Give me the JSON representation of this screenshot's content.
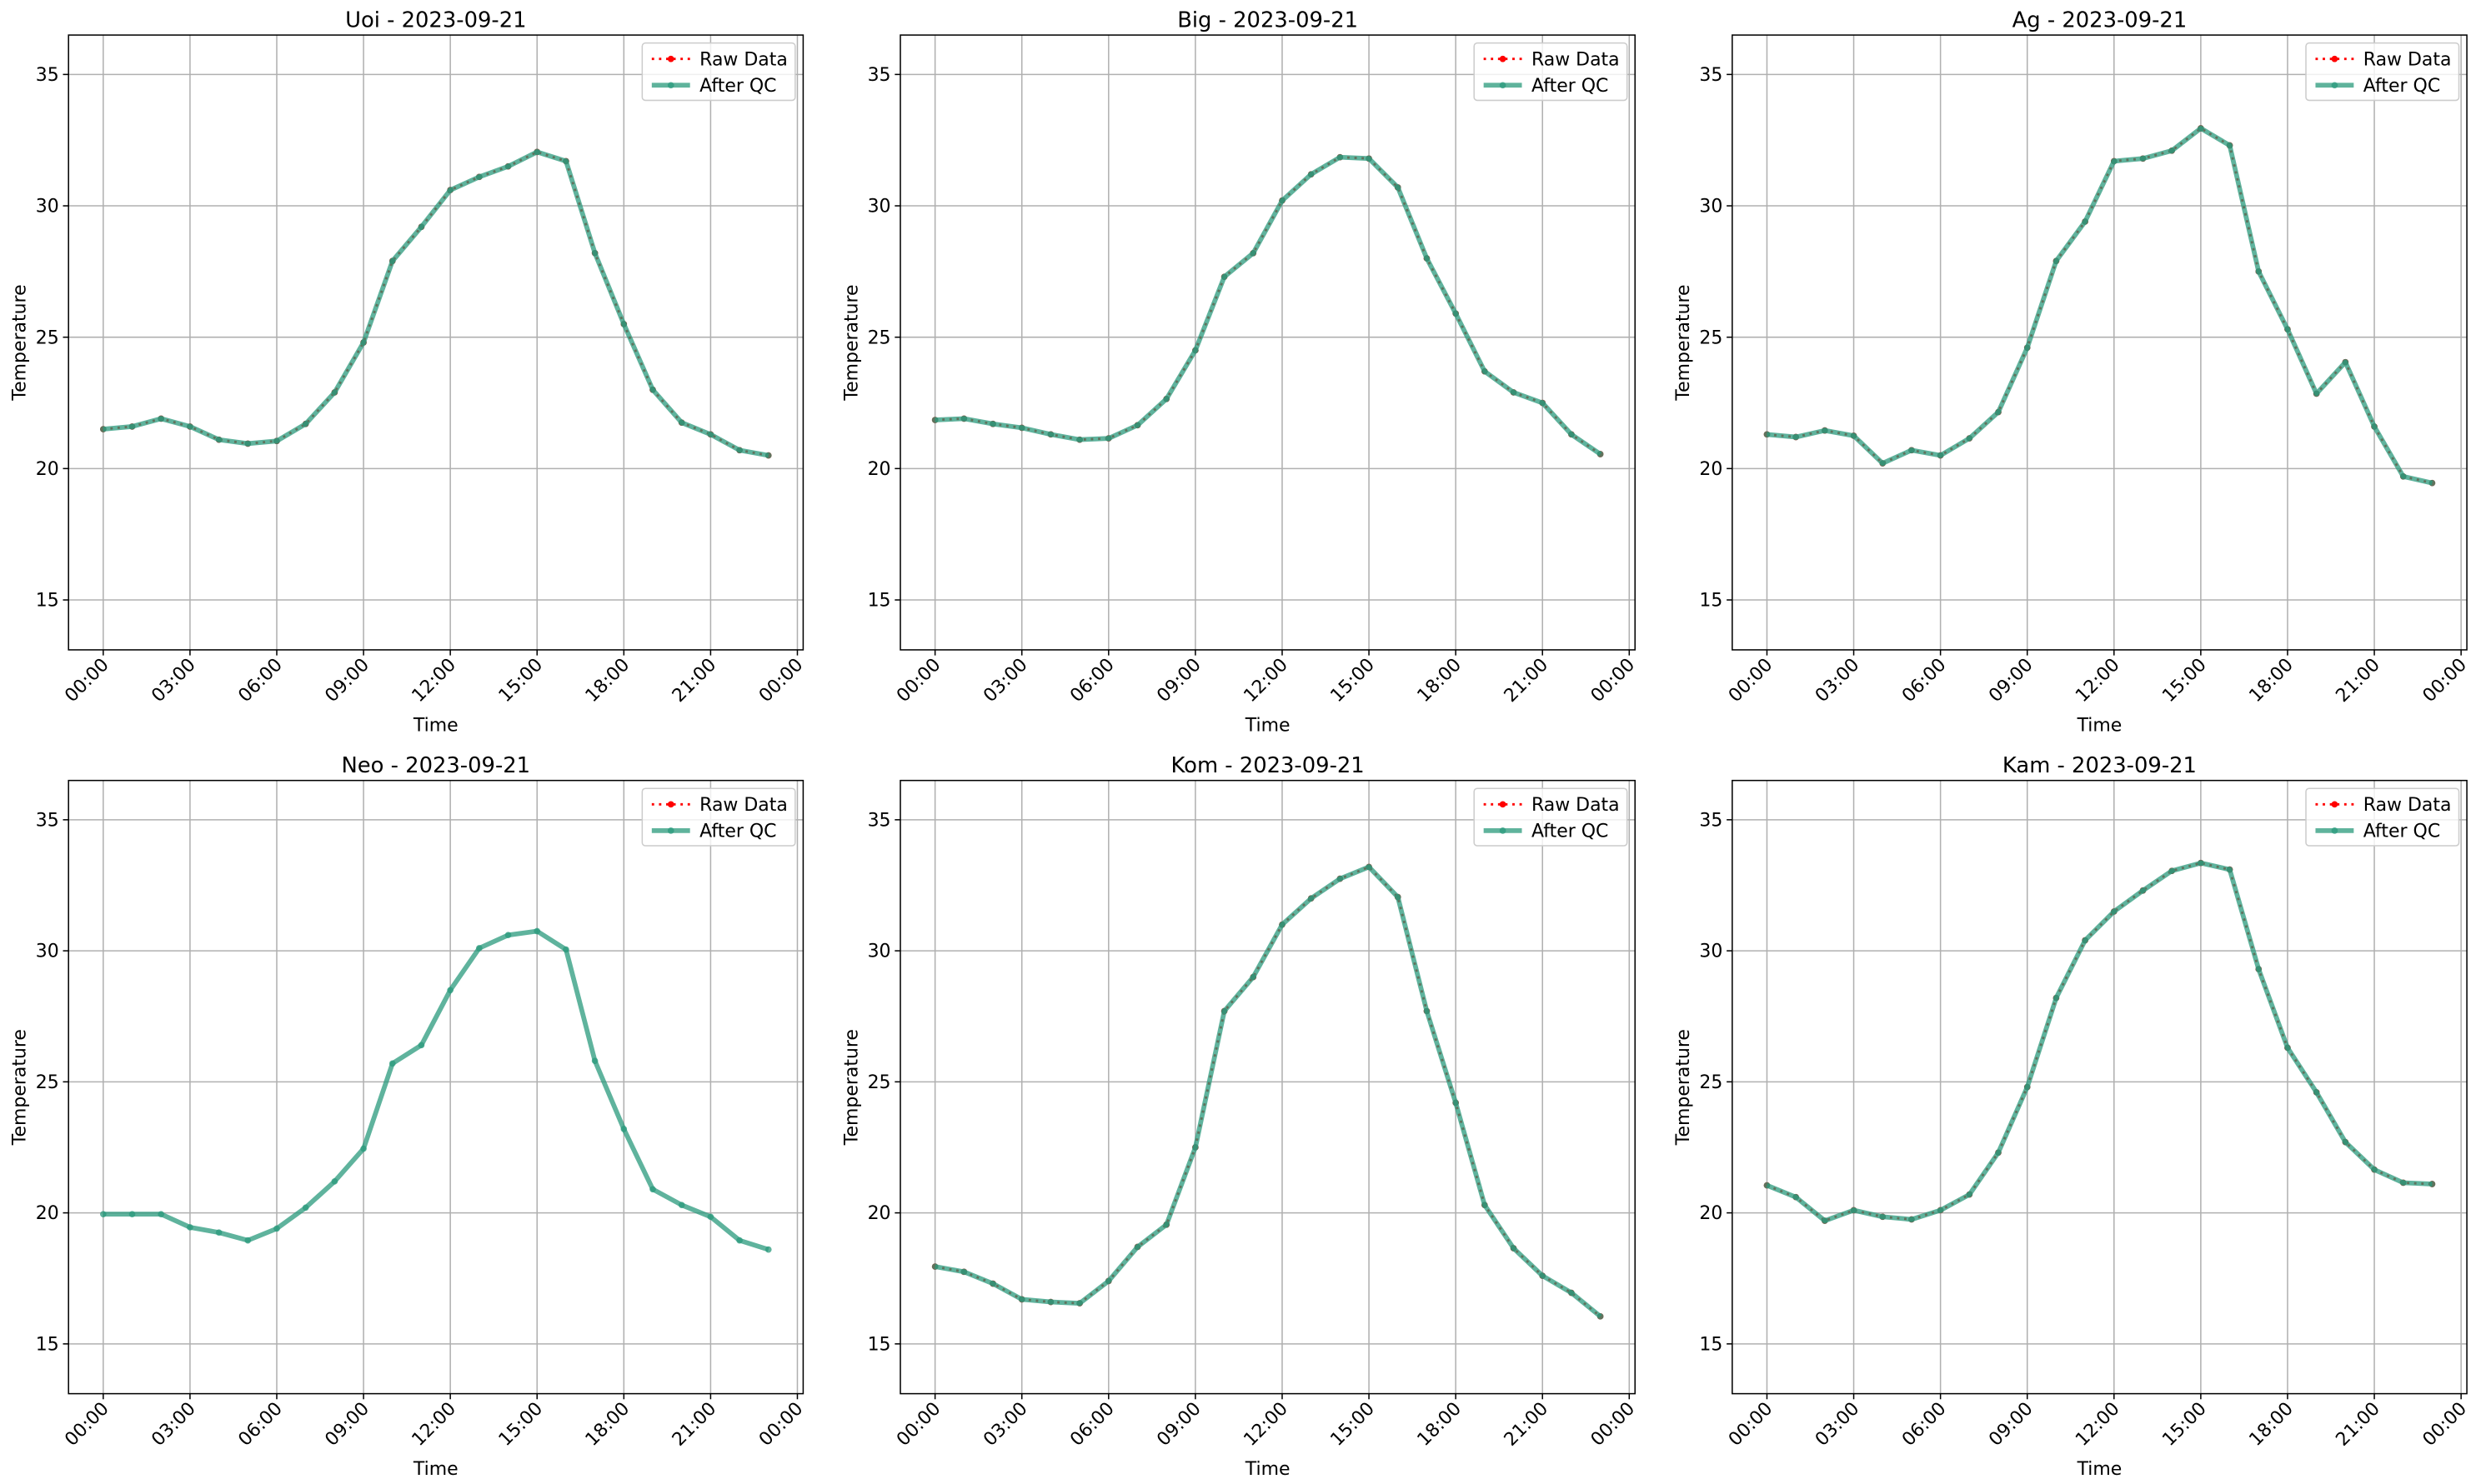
{
  "chart_data": [
    {
      "type": "line",
      "title": "Uoi - 2023-09-21",
      "xlabel": "Time",
      "ylabel": "Temperature",
      "x": [
        0,
        1,
        2,
        3,
        4,
        5,
        6,
        7,
        8,
        9,
        10,
        11,
        12,
        13,
        14,
        15,
        16,
        17,
        18,
        19,
        20,
        21,
        22,
        23
      ],
      "xlim": [
        -1.2,
        24.2
      ],
      "xticks": [
        {
          "value": 0,
          "label": "00:00"
        },
        {
          "value": 3,
          "label": "03:00"
        },
        {
          "value": 6,
          "label": "06:00"
        },
        {
          "value": 9,
          "label": "09:00"
        },
        {
          "value": 12,
          "label": "12:00"
        },
        {
          "value": 15,
          "label": "15:00"
        },
        {
          "value": 18,
          "label": "18:00"
        },
        {
          "value": 21,
          "label": "21:00"
        },
        {
          "value": 24,
          "label": "00:00"
        }
      ],
      "ylim": [
        13.1,
        36.5
      ],
      "yticks": [
        15,
        20,
        25,
        30,
        35
      ],
      "grid": true,
      "legend": "upper right",
      "series": [
        {
          "name": "Raw Data",
          "color": "#ff0000",
          "values": [
            21.5,
            21.6,
            21.9,
            21.6,
            21.1,
            20.95,
            21.05,
            21.7,
            22.9,
            24.8,
            27.9,
            29.2,
            30.6,
            31.1,
            31.5,
            32.05,
            31.7,
            28.2,
            25.5,
            23.0,
            21.75,
            21.3,
            20.7,
            20.5
          ]
        },
        {
          "name": "After QC",
          "color": "#2a9a7c",
          "values": [
            21.5,
            21.6,
            21.9,
            21.6,
            21.1,
            20.95,
            21.05,
            21.7,
            22.9,
            24.8,
            27.9,
            29.2,
            30.6,
            31.1,
            31.5,
            32.05,
            31.7,
            28.2,
            25.5,
            23.0,
            21.75,
            21.3,
            20.7,
            20.5
          ]
        }
      ]
    },
    {
      "type": "line",
      "title": "Big - 2023-09-21",
      "xlabel": "Time",
      "ylabel": "Temperature",
      "x": [
        0,
        1,
        2,
        3,
        4,
        5,
        6,
        7,
        8,
        9,
        10,
        11,
        12,
        13,
        14,
        15,
        16,
        17,
        18,
        19,
        20,
        21,
        22,
        23
      ],
      "xlim": [
        -1.2,
        24.2
      ],
      "xticks": [
        {
          "value": 0,
          "label": "00:00"
        },
        {
          "value": 3,
          "label": "03:00"
        },
        {
          "value": 6,
          "label": "06:00"
        },
        {
          "value": 9,
          "label": "09:00"
        },
        {
          "value": 12,
          "label": "12:00"
        },
        {
          "value": 15,
          "label": "15:00"
        },
        {
          "value": 18,
          "label": "18:00"
        },
        {
          "value": 21,
          "label": "21:00"
        },
        {
          "value": 24,
          "label": "00:00"
        }
      ],
      "ylim": [
        13.1,
        36.5
      ],
      "yticks": [
        15,
        20,
        25,
        30,
        35
      ],
      "grid": true,
      "legend": "upper right",
      "series": [
        {
          "name": "Raw Data",
          "color": "#ff0000",
          "values": [
            21.85,
            21.9,
            21.7,
            21.55,
            21.3,
            21.1,
            21.15,
            21.65,
            22.65,
            24.5,
            27.3,
            28.2,
            30.2,
            31.2,
            31.85,
            31.8,
            30.7,
            28.0,
            25.9,
            23.7,
            22.9,
            22.5,
            21.3,
            20.55
          ]
        },
        {
          "name": "After QC",
          "color": "#2a9a7c",
          "values": [
            21.85,
            21.9,
            21.7,
            21.55,
            21.3,
            21.1,
            21.15,
            21.65,
            22.65,
            24.5,
            27.3,
            28.2,
            30.2,
            31.2,
            31.85,
            31.8,
            30.7,
            28.0,
            25.9,
            23.7,
            22.9,
            22.5,
            21.3,
            20.55
          ]
        }
      ]
    },
    {
      "type": "line",
      "title": "Ag - 2023-09-21",
      "xlabel": "Time",
      "ylabel": "Temperature",
      "x": [
        0,
        1,
        2,
        3,
        4,
        5,
        6,
        7,
        8,
        9,
        10,
        11,
        12,
        13,
        14,
        15,
        16,
        17,
        18,
        19,
        20,
        21,
        22,
        23
      ],
      "xlim": [
        -1.2,
        24.2
      ],
      "xticks": [
        {
          "value": 0,
          "label": "00:00"
        },
        {
          "value": 3,
          "label": "03:00"
        },
        {
          "value": 6,
          "label": "06:00"
        },
        {
          "value": 9,
          "label": "09:00"
        },
        {
          "value": 12,
          "label": "12:00"
        },
        {
          "value": 15,
          "label": "15:00"
        },
        {
          "value": 18,
          "label": "18:00"
        },
        {
          "value": 21,
          "label": "21:00"
        },
        {
          "value": 24,
          "label": "00:00"
        }
      ],
      "ylim": [
        13.1,
        36.5
      ],
      "yticks": [
        15,
        20,
        25,
        30,
        35
      ],
      "grid": true,
      "legend": "upper right",
      "series": [
        {
          "name": "Raw Data",
          "color": "#ff0000",
          "values": [
            21.3,
            21.2,
            21.45,
            21.25,
            20.2,
            20.7,
            20.5,
            21.15,
            22.15,
            24.6,
            27.9,
            29.4,
            31.7,
            31.8,
            32.1,
            32.95,
            32.3,
            27.5,
            25.3,
            22.85,
            24.05,
            21.6,
            19.7,
            19.45
          ]
        },
        {
          "name": "After QC",
          "color": "#2a9a7c",
          "values": [
            21.3,
            21.2,
            21.45,
            21.25,
            20.2,
            20.7,
            20.5,
            21.15,
            22.15,
            24.6,
            27.9,
            29.4,
            31.7,
            31.8,
            32.1,
            32.95,
            32.3,
            27.5,
            25.3,
            22.85,
            24.05,
            21.6,
            19.7,
            19.45
          ]
        }
      ]
    },
    {
      "type": "line",
      "title": "Neo - 2023-09-21",
      "xlabel": "Time",
      "ylabel": "Temperature",
      "x": [
        0,
        1,
        2,
        3,
        4,
        5,
        6,
        7,
        8,
        9,
        10,
        11,
        12,
        13,
        14,
        15,
        16,
        17,
        18,
        19,
        20,
        21,
        22,
        23
      ],
      "xlim": [
        -1.2,
        24.2
      ],
      "xticks": [
        {
          "value": 0,
          "label": "00:00"
        },
        {
          "value": 3,
          "label": "03:00"
        },
        {
          "value": 6,
          "label": "06:00"
        },
        {
          "value": 9,
          "label": "09:00"
        },
        {
          "value": 12,
          "label": "12:00"
        },
        {
          "value": 15,
          "label": "15:00"
        },
        {
          "value": 18,
          "label": "18:00"
        },
        {
          "value": 21,
          "label": "21:00"
        },
        {
          "value": 24,
          "label": "00:00"
        }
      ],
      "ylim": [
        13.1,
        36.5
      ],
      "yticks": [
        15,
        20,
        25,
        30,
        35
      ],
      "grid": true,
      "legend": "upper right",
      "series": [
        {
          "name": "Raw Data",
          "color": "#ff0000",
          "values": [
            null,
            null,
            null,
            null,
            null,
            null,
            null,
            null,
            null,
            null,
            null,
            null,
            null,
            null,
            null,
            null,
            null,
            null,
            null,
            null,
            null,
            null,
            null,
            null
          ]
        },
        {
          "name": "After QC",
          "color": "#2a9a7c",
          "values": [
            19.95,
            19.95,
            19.95,
            19.45,
            19.25,
            18.95,
            19.4,
            20.2,
            21.2,
            22.45,
            25.7,
            26.4,
            28.5,
            30.1,
            30.6,
            30.75,
            30.05,
            25.8,
            23.2,
            20.9,
            20.3,
            19.85,
            18.95,
            18.6
          ]
        }
      ]
    },
    {
      "type": "line",
      "title": "Kom - 2023-09-21",
      "xlabel": "Time",
      "ylabel": "Temperature",
      "x": [
        0,
        1,
        2,
        3,
        4,
        5,
        6,
        7,
        8,
        9,
        10,
        11,
        12,
        13,
        14,
        15,
        16,
        17,
        18,
        19,
        20,
        21,
        22,
        23
      ],
      "xlim": [
        -1.2,
        24.2
      ],
      "xticks": [
        {
          "value": 0,
          "label": "00:00"
        },
        {
          "value": 3,
          "label": "03:00"
        },
        {
          "value": 6,
          "label": "06:00"
        },
        {
          "value": 9,
          "label": "09:00"
        },
        {
          "value": 12,
          "label": "12:00"
        },
        {
          "value": 15,
          "label": "15:00"
        },
        {
          "value": 18,
          "label": "18:00"
        },
        {
          "value": 21,
          "label": "21:00"
        },
        {
          "value": 24,
          "label": "00:00"
        }
      ],
      "ylim": [
        13.1,
        36.5
      ],
      "yticks": [
        15,
        20,
        25,
        30,
        35
      ],
      "grid": true,
      "legend": "upper right",
      "series": [
        {
          "name": "Raw Data",
          "color": "#ff0000",
          "values": [
            17.95,
            17.75,
            17.3,
            16.7,
            16.6,
            16.55,
            17.4,
            18.7,
            19.55,
            22.5,
            27.7,
            29.0,
            31.0,
            32.0,
            32.75,
            33.2,
            32.05,
            27.7,
            24.2,
            20.3,
            18.65,
            17.6,
            16.95,
            16.05
          ]
        },
        {
          "name": "After QC",
          "color": "#2a9a7c",
          "values": [
            17.95,
            17.75,
            17.3,
            16.7,
            16.6,
            16.55,
            17.4,
            18.7,
            19.55,
            22.5,
            27.7,
            29.0,
            31.0,
            32.0,
            32.75,
            33.2,
            32.05,
            27.7,
            24.2,
            20.3,
            18.65,
            17.6,
            16.95,
            16.05
          ]
        }
      ]
    },
    {
      "type": "line",
      "title": "Kam - 2023-09-21",
      "xlabel": "Time",
      "ylabel": "Temperature",
      "x": [
        0,
        1,
        2,
        3,
        4,
        5,
        6,
        7,
        8,
        9,
        10,
        11,
        12,
        13,
        14,
        15,
        16,
        17,
        18,
        19,
        20,
        21,
        22,
        23
      ],
      "xlim": [
        -1.2,
        24.2
      ],
      "xticks": [
        {
          "value": 0,
          "label": "00:00"
        },
        {
          "value": 3,
          "label": "03:00"
        },
        {
          "value": 6,
          "label": "06:00"
        },
        {
          "value": 9,
          "label": "09:00"
        },
        {
          "value": 12,
          "label": "12:00"
        },
        {
          "value": 15,
          "label": "15:00"
        },
        {
          "value": 18,
          "label": "18:00"
        },
        {
          "value": 21,
          "label": "21:00"
        },
        {
          "value": 24,
          "label": "00:00"
        }
      ],
      "ylim": [
        13.1,
        36.5
      ],
      "yticks": [
        15,
        20,
        25,
        30,
        35
      ],
      "grid": true,
      "legend": "upper right",
      "series": [
        {
          "name": "Raw Data",
          "color": "#ff0000",
          "values": [
            21.05,
            20.6,
            19.7,
            20.1,
            19.85,
            19.75,
            20.1,
            20.7,
            22.3,
            24.8,
            28.2,
            30.4,
            31.5,
            32.3,
            33.05,
            33.35,
            33.1,
            29.3,
            26.3,
            24.6,
            22.7,
            21.65,
            21.15,
            21.1
          ]
        },
        {
          "name": "After QC",
          "color": "#2a9a7c",
          "values": [
            21.05,
            20.6,
            19.7,
            20.1,
            19.85,
            19.75,
            20.1,
            20.7,
            22.3,
            24.8,
            28.2,
            30.4,
            31.5,
            32.3,
            33.05,
            33.35,
            33.1,
            29.3,
            26.3,
            24.6,
            22.7,
            21.65,
            21.15,
            21.1
          ]
        }
      ]
    }
  ]
}
